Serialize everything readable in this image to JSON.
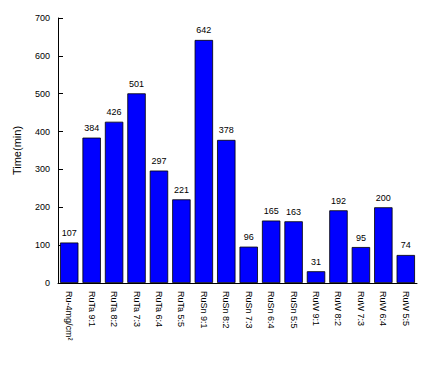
{
  "chart_data": {
    "type": "bar",
    "y_label": "Time(min)",
    "categories": [
      "Ru-4mg/cm²",
      "RuTa 9:1",
      "RuTa 8:2",
      "RuTa 7:3",
      "RuTa 6:4",
      "RuTa 5:5",
      "RuSn 9:1",
      "RuSn 8:2",
      "RuSn 7:3",
      "RuSn 6:4",
      "RuSn 5:5",
      "RuW 9:1",
      "RuW 8:2",
      "RuW 7:3",
      "RuW 6:4",
      "RuW 5:5"
    ],
    "values": [
      107,
      384,
      426,
      501,
      297,
      221,
      642,
      378,
      96,
      165,
      163,
      31,
      192,
      95,
      200,
      74
    ],
    "color": "#0000ff",
    "ylim": [
      0,
      700
    ],
    "yticks": [
      0,
      100,
      200,
      300,
      400,
      500,
      600,
      700
    ],
    "grid": false,
    "data_labels": true
  }
}
